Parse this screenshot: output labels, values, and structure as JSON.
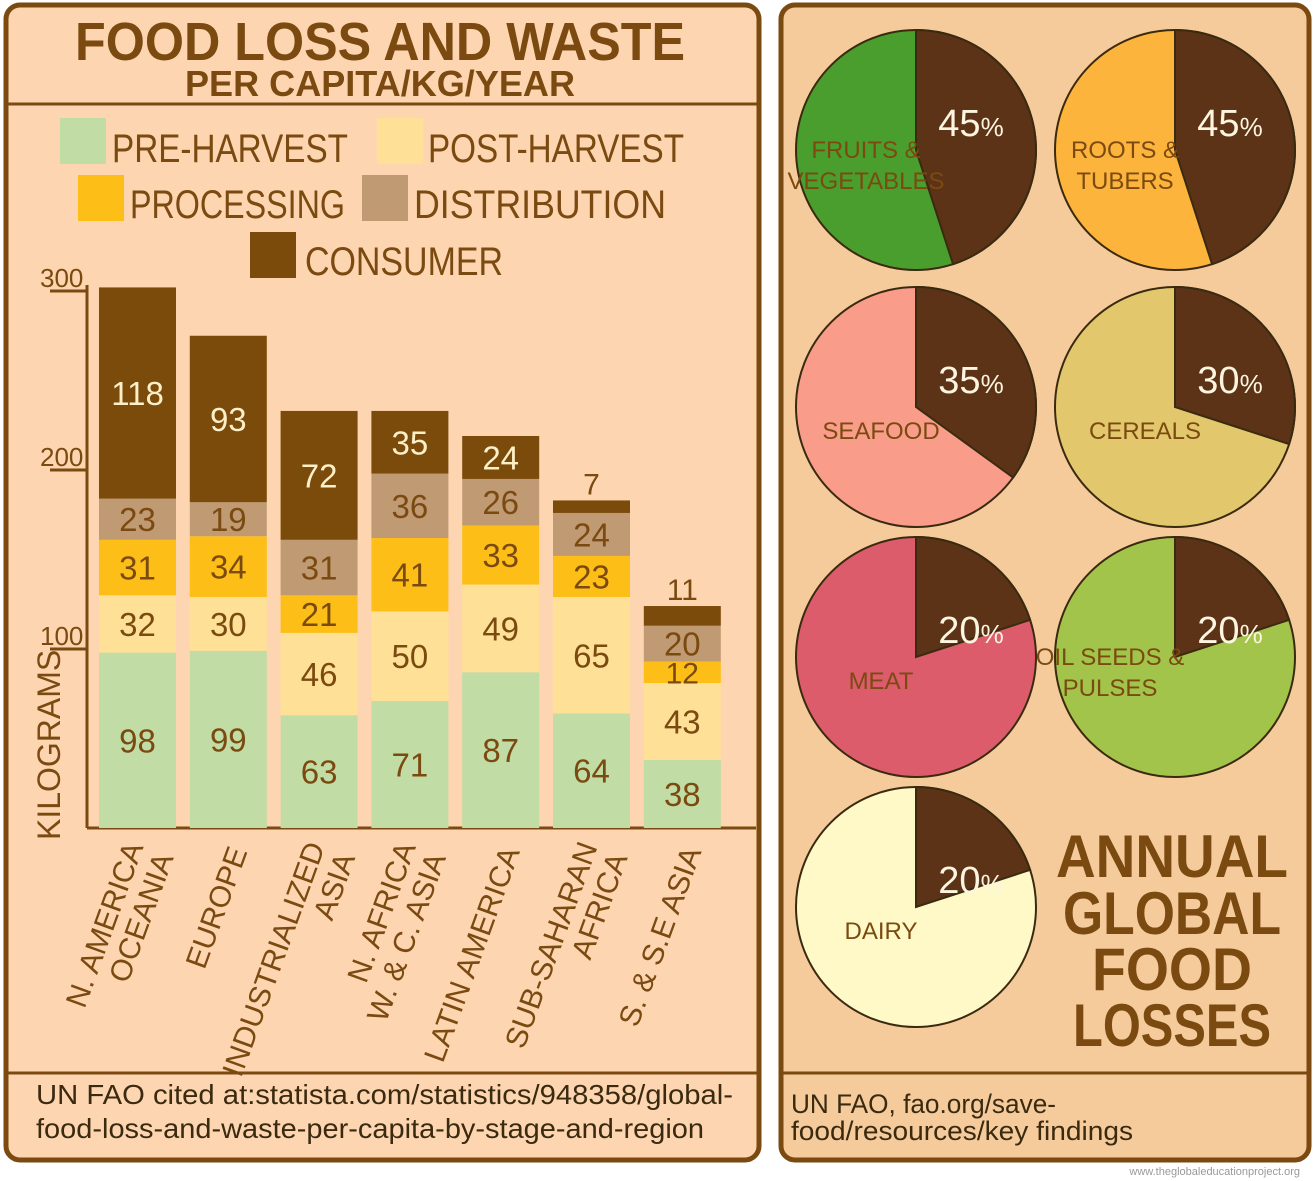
{
  "colors": {
    "text": "#7a4a10",
    "panel_left": "#fdd5b0",
    "panel_right": "#f5cb9c",
    "border": "#7a4a10",
    "pie_loss": "#5c3317"
  },
  "left": {
    "title": "FOOD LOSS AND WASTE",
    "subtitle": "PER CAPITA/KG/YEAR",
    "source_line1": "UN FAO cited at:statista.com/statistics/948358/global-",
    "source_line2": "food-loss-and-waste-per-capita-by-stage-and-region"
  },
  "right": {
    "title_lines": [
      "ANNUAL",
      "GLOBAL",
      "FOOD",
      "LOSSES"
    ],
    "source_line1": "UN FAO, fao.org/save-",
    "source_line2": "food/resources/key findings"
  },
  "watermark": "www.theglobaleducationproject.org",
  "chart_data": [
    {
      "type": "bar",
      "stacked": true,
      "title": "FOOD LOSS AND WASTE",
      "subtitle": "PER CAPITA/KG/YEAR",
      "ylabel": "KILOGRAMS",
      "ylim": [
        0,
        300
      ],
      "yticks": [
        100,
        200,
        300
      ],
      "legend_placement": "top",
      "categories": [
        [
          "N. AMERICA",
          "OCEANIA"
        ],
        [
          "EUROPE"
        ],
        [
          "INDUSTRIALIZED",
          "ASIA"
        ],
        [
          "N. AFRICA",
          "W. & C. ASIA"
        ],
        [
          "LATIN AMERICA"
        ],
        [
          "SUB-SAHARAN",
          "AFRICA"
        ],
        [
          "S. & S.E ASIA"
        ]
      ],
      "series": [
        {
          "name": "PRE-HARVEST",
          "color": "#c1dca5",
          "values": [
            98,
            99,
            63,
            71,
            87,
            64,
            38
          ]
        },
        {
          "name": "POST-HARVEST",
          "color": "#fee196",
          "values": [
            32,
            30,
            46,
            50,
            49,
            65,
            43
          ]
        },
        {
          "name": "PROCESSING",
          "color": "#fdbf17",
          "values": [
            31,
            34,
            21,
            41,
            33,
            23,
            12
          ]
        },
        {
          "name": "DISTRIBUTION",
          "color": "#c09a73",
          "values": [
            23,
            19,
            31,
            36,
            26,
            24,
            20
          ]
        },
        {
          "name": "CONSUMER",
          "color": "#7b4b0c",
          "values": [
            118,
            93,
            72,
            35,
            24,
            7,
            11
          ]
        }
      ]
    },
    {
      "type": "pie",
      "title": "ANNUAL GLOBAL FOOD LOSSES",
      "items": [
        {
          "label": [
            "FRUITS &",
            "VEGETABLES"
          ],
          "loss_pct": 45,
          "pct_label": "45%",
          "color": "#4a9e2d"
        },
        {
          "label": [
            "ROOTS &",
            "TUBERS"
          ],
          "loss_pct": 45,
          "pct_label": "45%",
          "color": "#fdb43c"
        },
        {
          "label": [
            "SEAFOOD"
          ],
          "loss_pct": 35,
          "pct_label": "35%",
          "color": "#f99d8a"
        },
        {
          "label": [
            "CEREALS"
          ],
          "loss_pct": 30,
          "pct_label": "30%",
          "color": "#e3c76c"
        },
        {
          "label": [
            "MEAT"
          ],
          "loss_pct": 20,
          "pct_label": "20%",
          "color": "#dc5c6c"
        },
        {
          "label": [
            "OIL SEEDS &",
            "PULSES"
          ],
          "loss_pct": 20,
          "pct_label": "20%",
          "color": "#a3c44a"
        },
        {
          "label": [
            "DAIRY"
          ],
          "loss_pct": 20,
          "pct_label": "20%",
          "color": "#fef9c6"
        }
      ]
    }
  ]
}
